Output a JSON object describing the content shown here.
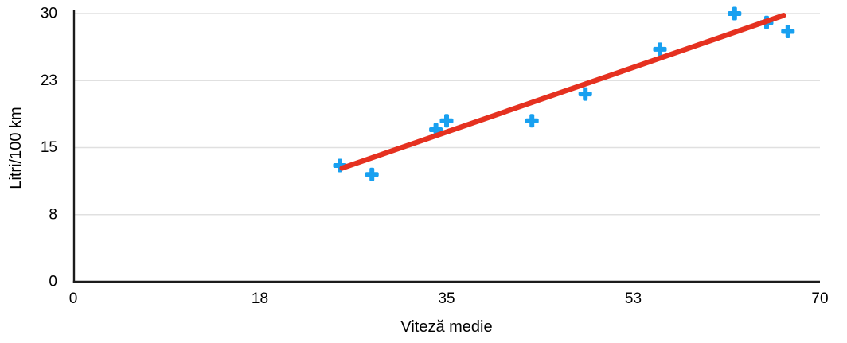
{
  "chart_data": {
    "type": "scatter",
    "title": "",
    "xlabel": "Viteză medie",
    "ylabel": "Litri/100 km",
    "xlim": [
      0,
      70
    ],
    "ylim": [
      0,
      30
    ],
    "grid": "horizontal-only",
    "legend_position": "none",
    "x_ticks": [
      {
        "value": 0,
        "label": "0"
      },
      {
        "value": 17.5,
        "label": "18"
      },
      {
        "value": 35,
        "label": "35"
      },
      {
        "value": 52.5,
        "label": "53"
      },
      {
        "value": 70,
        "label": "70"
      }
    ],
    "y_ticks": [
      {
        "value": 0,
        "label": "0"
      },
      {
        "value": 7.5,
        "label": "8"
      },
      {
        "value": 15,
        "label": "15"
      },
      {
        "value": 22.5,
        "label": "23"
      },
      {
        "value": 30,
        "label": "30"
      }
    ],
    "series": [
      {
        "name": "Litri/100 km",
        "marker": "plus",
        "color": "#18A0F0",
        "points": [
          {
            "x": 25,
            "y": 13
          },
          {
            "x": 28,
            "y": 12
          },
          {
            "x": 34,
            "y": 17
          },
          {
            "x": 35,
            "y": 18
          },
          {
            "x": 43,
            "y": 18
          },
          {
            "x": 48,
            "y": 21
          },
          {
            "x": 55,
            "y": 26
          },
          {
            "x": 62,
            "y": 30
          },
          {
            "x": 65,
            "y": 29
          },
          {
            "x": 67,
            "y": 28
          }
        ]
      }
    ],
    "trendline": {
      "color": "#E53120",
      "from": {
        "x": 25.2,
        "y": 12.7
      },
      "to": {
        "x": 66.6,
        "y": 29.8
      }
    }
  },
  "colors": {
    "background": "#FFFFFF",
    "gridline": "#E0E0E0",
    "axis_line": "#1C1C1C",
    "tick_text": "#000000"
  }
}
